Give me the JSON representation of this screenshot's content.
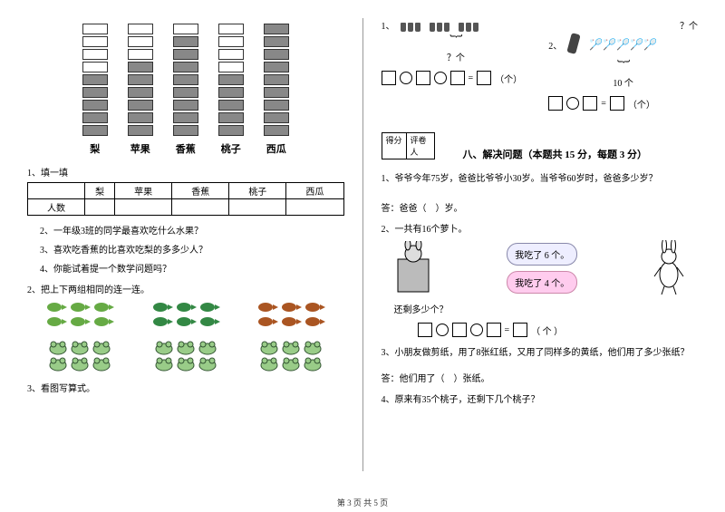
{
  "footer": "第 3 页 共 5 页",
  "left": {
    "chart": {
      "categories": [
        "梨",
        "苹果",
        "香蕉",
        "桃子",
        "西瓜"
      ],
      "max_cells": 9,
      "filled": [
        5,
        6,
        8,
        5,
        9
      ],
      "cell_fill_color": "#888888",
      "cell_empty_color": "#ffffff"
    },
    "q1_title": "1、填一填",
    "table_row_header": "人数",
    "q2": "2、一年级3班的同学最喜欢吃什么水果？",
    "q3": "3、喜欢吃香蕉的比喜欢吃梨的多多少人？",
    "q4": "4、你能试着提一个数学问题吗？",
    "match_title": "2、把上下两组相同的连一连。",
    "match_top_counts": [
      6,
      6,
      6
    ],
    "match_bottom_counts": [
      6,
      6,
      6
    ],
    "q_write": "3、看图写算式。"
  },
  "right": {
    "pic1": {
      "label": "1、",
      "groups": 3,
      "per_group": 3,
      "caption": "？个"
    },
    "pic2": {
      "label": "2、",
      "total_label": "10 个",
      "ask_label": "？个"
    },
    "eq1_suffix": "（个）",
    "eq2_suffix": "（个）",
    "section8": {
      "score_labels": [
        "得分",
        "评卷人"
      ],
      "title": "八、解决问题（本题共 15 分，每题 3 分）"
    },
    "p1": "1、爷爷今年75岁，爸爸比爷爷小30岁。当爷爷60岁时，爸爸多少岁？",
    "p1_ans": "答：爸爸（　）岁。",
    "p2": "2、一共有16个萝卜。",
    "bubble1": "我吃了 6 个。",
    "bubble2": "我吃了 4 个。",
    "p2_q": "还剩多少个？",
    "p2_eq_suffix": "（ 个 ）",
    "p3": "3、小朋友做剪纸，用了8张红纸，又用了同样多的黄纸，他们用了多少张纸？",
    "p3_ans": "答：他们用了（　）张纸。",
    "p4": "4、原来有35个桃子，还剩下几个桃子？"
  }
}
